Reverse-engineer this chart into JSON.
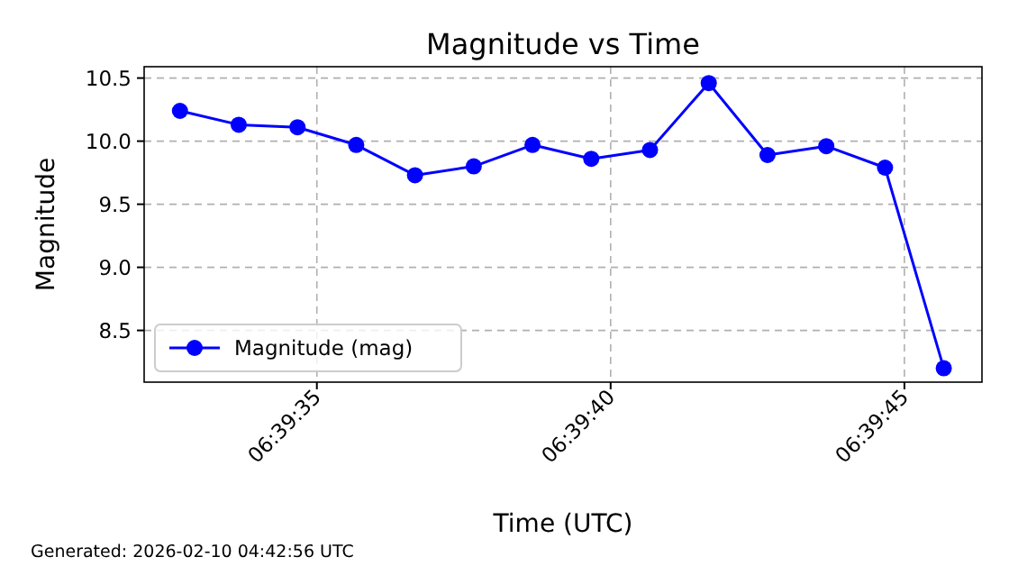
{
  "chart_data": {
    "type": "line",
    "title": "Magnitude vs Time",
    "xlabel": "Time (UTC)",
    "ylabel": "Magnitude",
    "x": [
      6.659075,
      6.6593528,
      6.6596306,
      6.6599083,
      6.6601861,
      6.6604639,
      6.6607417,
      6.6610194,
      6.6612972,
      6.661575,
      6.6618528,
      6.6621306,
      6.6624083,
      6.6626861
    ],
    "series": [
      {
        "name": "Magnitude (mag)",
        "color": "#0000ff",
        "values": [
          10.24,
          10.13,
          10.11,
          9.97,
          9.73,
          9.8,
          9.97,
          9.86,
          9.93,
          10.46,
          9.89,
          9.96,
          9.79,
          8.2
        ]
      }
    ],
    "xlim": [
      6.6589056,
      6.6628667
    ],
    "xticks": [
      {
        "value": 6.6597222,
        "label": "06:39:35"
      },
      {
        "value": 6.6611111,
        "label": "06:39:40"
      },
      {
        "value": 6.6625,
        "label": "06:39:45"
      }
    ],
    "ylim": [
      8.09,
      10.59
    ],
    "yticks": [
      8.5,
      {
        "value": 9,
        "label": "9.0"
      },
      9.5,
      {
        "value": 10,
        "label": "10.0"
      },
      10.5
    ],
    "grid": true,
    "legend": "bottom left",
    "marker": "circle",
    "line_style": "solid",
    "annotations": [
      "Generated: 2026-02-10 04:42:56 UTC"
    ]
  }
}
